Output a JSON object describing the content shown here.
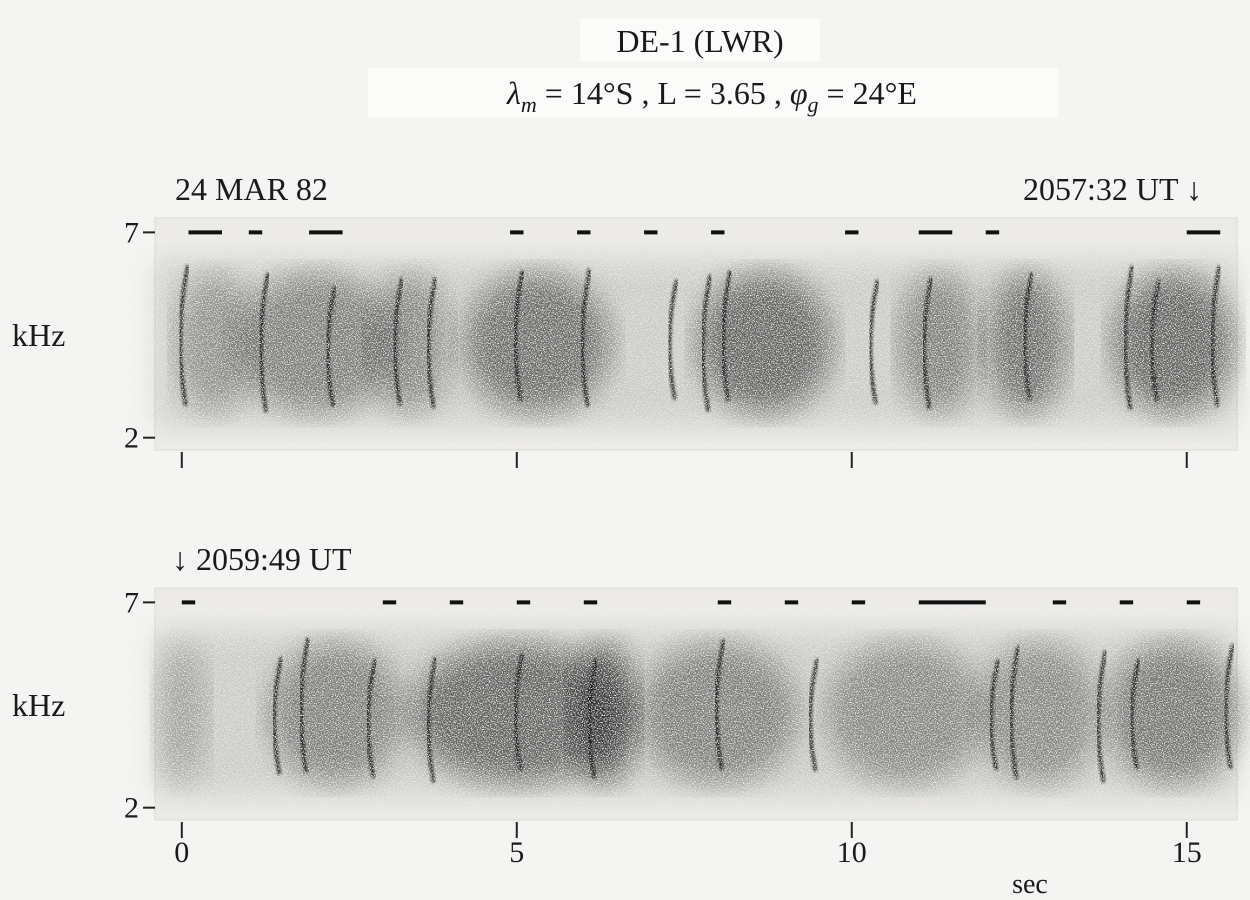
{
  "figure": {
    "title": "DE-1 (LWR)",
    "subtitle": [
      "λ",
      "m",
      " = 14°S , L = 3.65 , ",
      "φ",
      "g",
      " = 24°E"
    ],
    "x_axis": {
      "ticks": [
        0,
        5,
        10,
        15
      ],
      "label": "sec",
      "xlim": [
        -0.4,
        15.75
      ]
    },
    "panels": [
      {
        "date": "24 MAR 82",
        "time_label": "2057:32 UT ↓",
        "y_label": "kHz",
        "yticks": [
          2,
          7
        ],
        "ylim": [
          1.7,
          7.35
        ]
      },
      {
        "time_label": "↓ 2059:49 UT",
        "y_label": "kHz",
        "yticks": [
          2,
          7
        ],
        "ylim": [
          1.7,
          7.35
        ]
      }
    ]
  }
}
